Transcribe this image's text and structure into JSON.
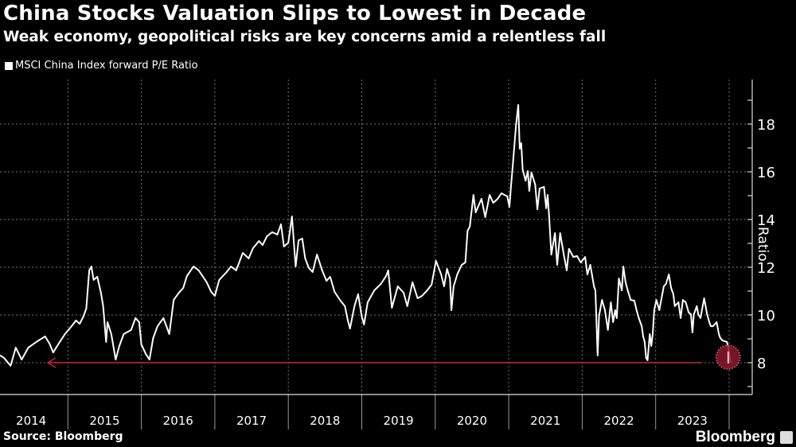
{
  "chart_data": {
    "type": "line",
    "title": "China Stocks Valuation Slips to Lowest in Decade",
    "subtitle": "Weak economy, geopolitical risks are key concerns amid a relentless fall",
    "ylabel": "Ratio",
    "xlabel": "",
    "ylim": [
      7,
      20
    ],
    "xlim": [
      2014,
      2024.2
    ],
    "y_ticks": [
      8,
      10,
      12,
      14,
      16,
      18
    ],
    "x_tick_labels": [
      "2014",
      "2015",
      "2016",
      "2017",
      "2018",
      "2019",
      "2020",
      "2021",
      "2022",
      "2023"
    ],
    "grid": true,
    "y_axis_side": "right",
    "legend": "top-left",
    "series": [
      {
        "name": "MSCI China Index forward P/E Ratio",
        "color": "#ffffff",
        "x": [
          2014.08,
          2014.13,
          2014.22,
          2014.29,
          2014.37,
          2014.46,
          2014.6,
          2014.69,
          2014.75,
          2014.8,
          2014.89,
          2014.96,
          2015.05,
          2015.11,
          2015.16,
          2015.21,
          2015.25,
          2015.29,
          2015.32,
          2015.35,
          2015.4,
          2015.45,
          2015.48,
          2015.52,
          2015.54,
          2015.59,
          2015.65,
          2015.7,
          2015.76,
          2015.86,
          2015.92,
          2015.97,
          2016.0,
          2016.06,
          2016.11,
          2016.16,
          2016.22,
          2016.3,
          2016.38,
          2016.44,
          2016.51,
          2016.57,
          2016.62,
          2016.71,
          2016.78,
          2016.84,
          2016.89,
          2016.95,
          2017.0,
          2017.06,
          2017.16,
          2017.22,
          2017.29,
          2017.38,
          2017.46,
          2017.52,
          2017.6,
          2017.65,
          2017.71,
          2017.78,
          2017.85,
          2017.9,
          2017.94,
          2018.0,
          2018.05,
          2018.1,
          2018.14,
          2018.19,
          2018.23,
          2018.28,
          2018.33,
          2018.39,
          2018.46,
          2018.52,
          2018.57,
          2018.63,
          2018.71,
          2018.77,
          2018.81,
          2018.84,
          2018.9,
          2018.95,
          2019.0,
          2019.03,
          2019.08,
          2019.17,
          2019.26,
          2019.33,
          2019.36,
          2019.41,
          2019.49,
          2019.57,
          2019.62,
          2019.69,
          2019.76,
          2019.82,
          2019.89,
          2019.95,
          2020.01,
          2020.08,
          2020.12,
          2020.16,
          2020.2,
          2020.22,
          2020.25,
          2020.3,
          2020.36,
          2020.41,
          2020.44,
          2020.47,
          2020.52,
          2020.55,
          2020.63,
          2020.68,
          2020.74,
          2020.79,
          2020.85,
          2020.9,
          2020.98,
          2021.01,
          2021.03,
          2021.06,
          2021.1,
          2021.13,
          2021.15,
          2021.17,
          2021.19,
          2021.23,
          2021.26,
          2021.28,
          2021.31,
          2021.36,
          2021.39,
          2021.42,
          2021.48,
          2021.51,
          2021.53,
          2021.55,
          2021.58,
          2021.63,
          2021.66,
          2021.7,
          2021.75,
          2021.79,
          2021.82,
          2021.88,
          2021.93,
          2021.98,
          2022.04,
          2022.07,
          2022.11,
          2022.16,
          2022.18,
          2022.21,
          2022.23,
          2022.27,
          2022.31,
          2022.35,
          2022.39,
          2022.42,
          2022.45,
          2022.47,
          2022.49,
          2022.5,
          2022.54,
          2022.56,
          2022.59,
          2022.62,
          2022.66,
          2022.71,
          2022.74,
          2022.77,
          2022.81,
          2022.83,
          2022.85,
          2022.87,
          2022.89,
          2022.92,
          2022.94,
          2022.96,
          2022.98,
          2023.01,
          2023.05,
          2023.08,
          2023.11,
          2023.14,
          2023.18,
          2023.21,
          2023.24,
          2023.26,
          2023.31,
          2023.34,
          2023.37,
          2023.41,
          2023.45,
          2023.48,
          2023.5,
          2023.52,
          2023.56,
          2023.58,
          2023.61,
          2023.64,
          2023.66,
          2023.7,
          2023.73,
          2023.75,
          2023.78,
          2023.83,
          2023.86,
          2023.88,
          2023.91,
          2023.97,
          2023.99,
          2024.01,
          2024.02
        ],
        "values": [
          8.3,
          8.2,
          7.87,
          8.63,
          8.13,
          8.63,
          8.93,
          9.1,
          8.8,
          8.43,
          8.87,
          9.2,
          9.53,
          9.77,
          9.63,
          9.93,
          10.27,
          11.87,
          12.03,
          11.47,
          11.6,
          10.93,
          10.37,
          8.87,
          9.7,
          9.2,
          8.13,
          8.7,
          9.2,
          9.37,
          9.87,
          9.7,
          8.77,
          8.37,
          8.13,
          9.03,
          9.53,
          9.87,
          9.2,
          10.63,
          10.93,
          11.13,
          11.63,
          12.03,
          11.87,
          11.6,
          11.37,
          10.97,
          10.8,
          11.47,
          11.8,
          12.03,
          11.87,
          12.6,
          12.37,
          12.8,
          13.1,
          12.93,
          13.3,
          13.47,
          13.37,
          13.8,
          12.87,
          13.03,
          14.13,
          12.03,
          13.13,
          13.2,
          12.37,
          11.97,
          11.8,
          12.53,
          11.87,
          11.43,
          11.6,
          10.97,
          10.6,
          10.37,
          9.77,
          9.43,
          10.37,
          10.87,
          9.93,
          9.6,
          10.53,
          11.03,
          11.3,
          11.63,
          11.87,
          10.3,
          11.2,
          10.93,
          10.37,
          11.37,
          10.7,
          10.8,
          11.03,
          11.27,
          12.27,
          11.7,
          11.2,
          11.93,
          11.53,
          10.2,
          11.2,
          11.7,
          12.1,
          12.2,
          13.53,
          13.7,
          15.03,
          14.3,
          14.87,
          14.1,
          15.03,
          14.7,
          14.87,
          15.1,
          14.97,
          14.53,
          15.37,
          16.43,
          17.97,
          18.8,
          16.97,
          17.2,
          16.1,
          15.63,
          16.03,
          15.2,
          15.97,
          15.47,
          14.43,
          15.3,
          15.37,
          14.47,
          15.03,
          14.1,
          12.53,
          13.43,
          12.1,
          13.43,
          12.53,
          11.87,
          12.77,
          12.43,
          12.47,
          12.2,
          12.43,
          11.7,
          12.1,
          11.2,
          11.03,
          8.3,
          9.97,
          10.63,
          10.2,
          9.37,
          10.53,
          9.7,
          10.2,
          9.87,
          10.97,
          11.53,
          11.03,
          12.03,
          11.37,
          11.03,
          10.63,
          10.6,
          10.2,
          9.87,
          9.53,
          9.1,
          8.87,
          8.2,
          8.1,
          9.2,
          8.7,
          9.2,
          10.2,
          10.63,
          10.2,
          10.7,
          11.2,
          11.3,
          11.7,
          11.13,
          10.87,
          10.37,
          10.53,
          9.87,
          10.63,
          10.53,
          10.1,
          10.03,
          9.27,
          10.03,
          10.37,
          10.03,
          9.87,
          10.37,
          10.7,
          10.03,
          9.7,
          9.53,
          9.53,
          9.7,
          9.2,
          9.03,
          8.93,
          8.87,
          8.63,
          8.2,
          8.03
        ]
      }
    ],
    "annotations": [
      {
        "type": "horizontal-arrow",
        "value": 8.0,
        "color": "#c8283c",
        "direction": "left"
      },
      {
        "type": "highlight-circle",
        "x": 2024.02,
        "value": 8.0,
        "color": "#8b1a2b"
      }
    ]
  },
  "footer": {
    "source": "Source: Bloomberg",
    "brand": "Bloomberg"
  }
}
